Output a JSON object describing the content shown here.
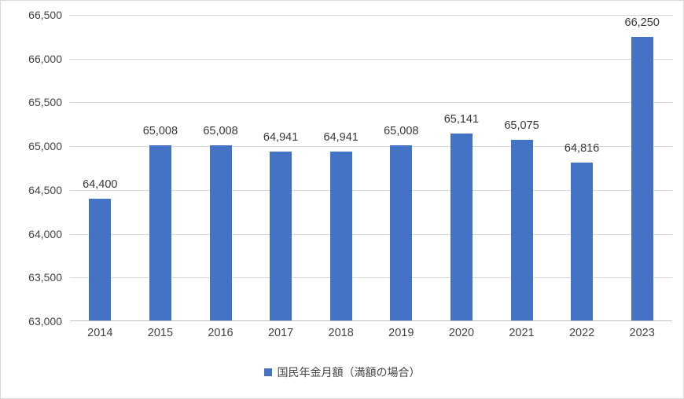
{
  "chart_data": {
    "type": "bar",
    "categories": [
      "2014",
      "2015",
      "2016",
      "2017",
      "2018",
      "2019",
      "2020",
      "2021",
      "2022",
      "2023"
    ],
    "values": [
      64400,
      65008,
      65008,
      64941,
      64941,
      65008,
      65141,
      65075,
      64816,
      66250
    ],
    "data_labels": [
      "64,400",
      "65,008",
      "65,008",
      "64,941",
      "64,941",
      "65,008",
      "65,141",
      "65,075",
      "64,816",
      "66,250"
    ],
    "title": "",
    "xlabel": "",
    "ylabel": "",
    "ylim": [
      63000,
      66500
    ],
    "ytick_step": 500,
    "ytick_labels": [
      "63,000",
      "63,500",
      "64,000",
      "64,500",
      "65,000",
      "65,500",
      "66,000",
      "66,500"
    ],
    "grid": true,
    "legend": "国民年金月額（満額の場合）",
    "legend_position": "bottom",
    "colors": {
      "bar": "#4472C4",
      "gridline": "#d9d9d9",
      "axis_line": "#bfbfbf",
      "tick_text": "#444444",
      "data_label_text": "#383838"
    }
  }
}
